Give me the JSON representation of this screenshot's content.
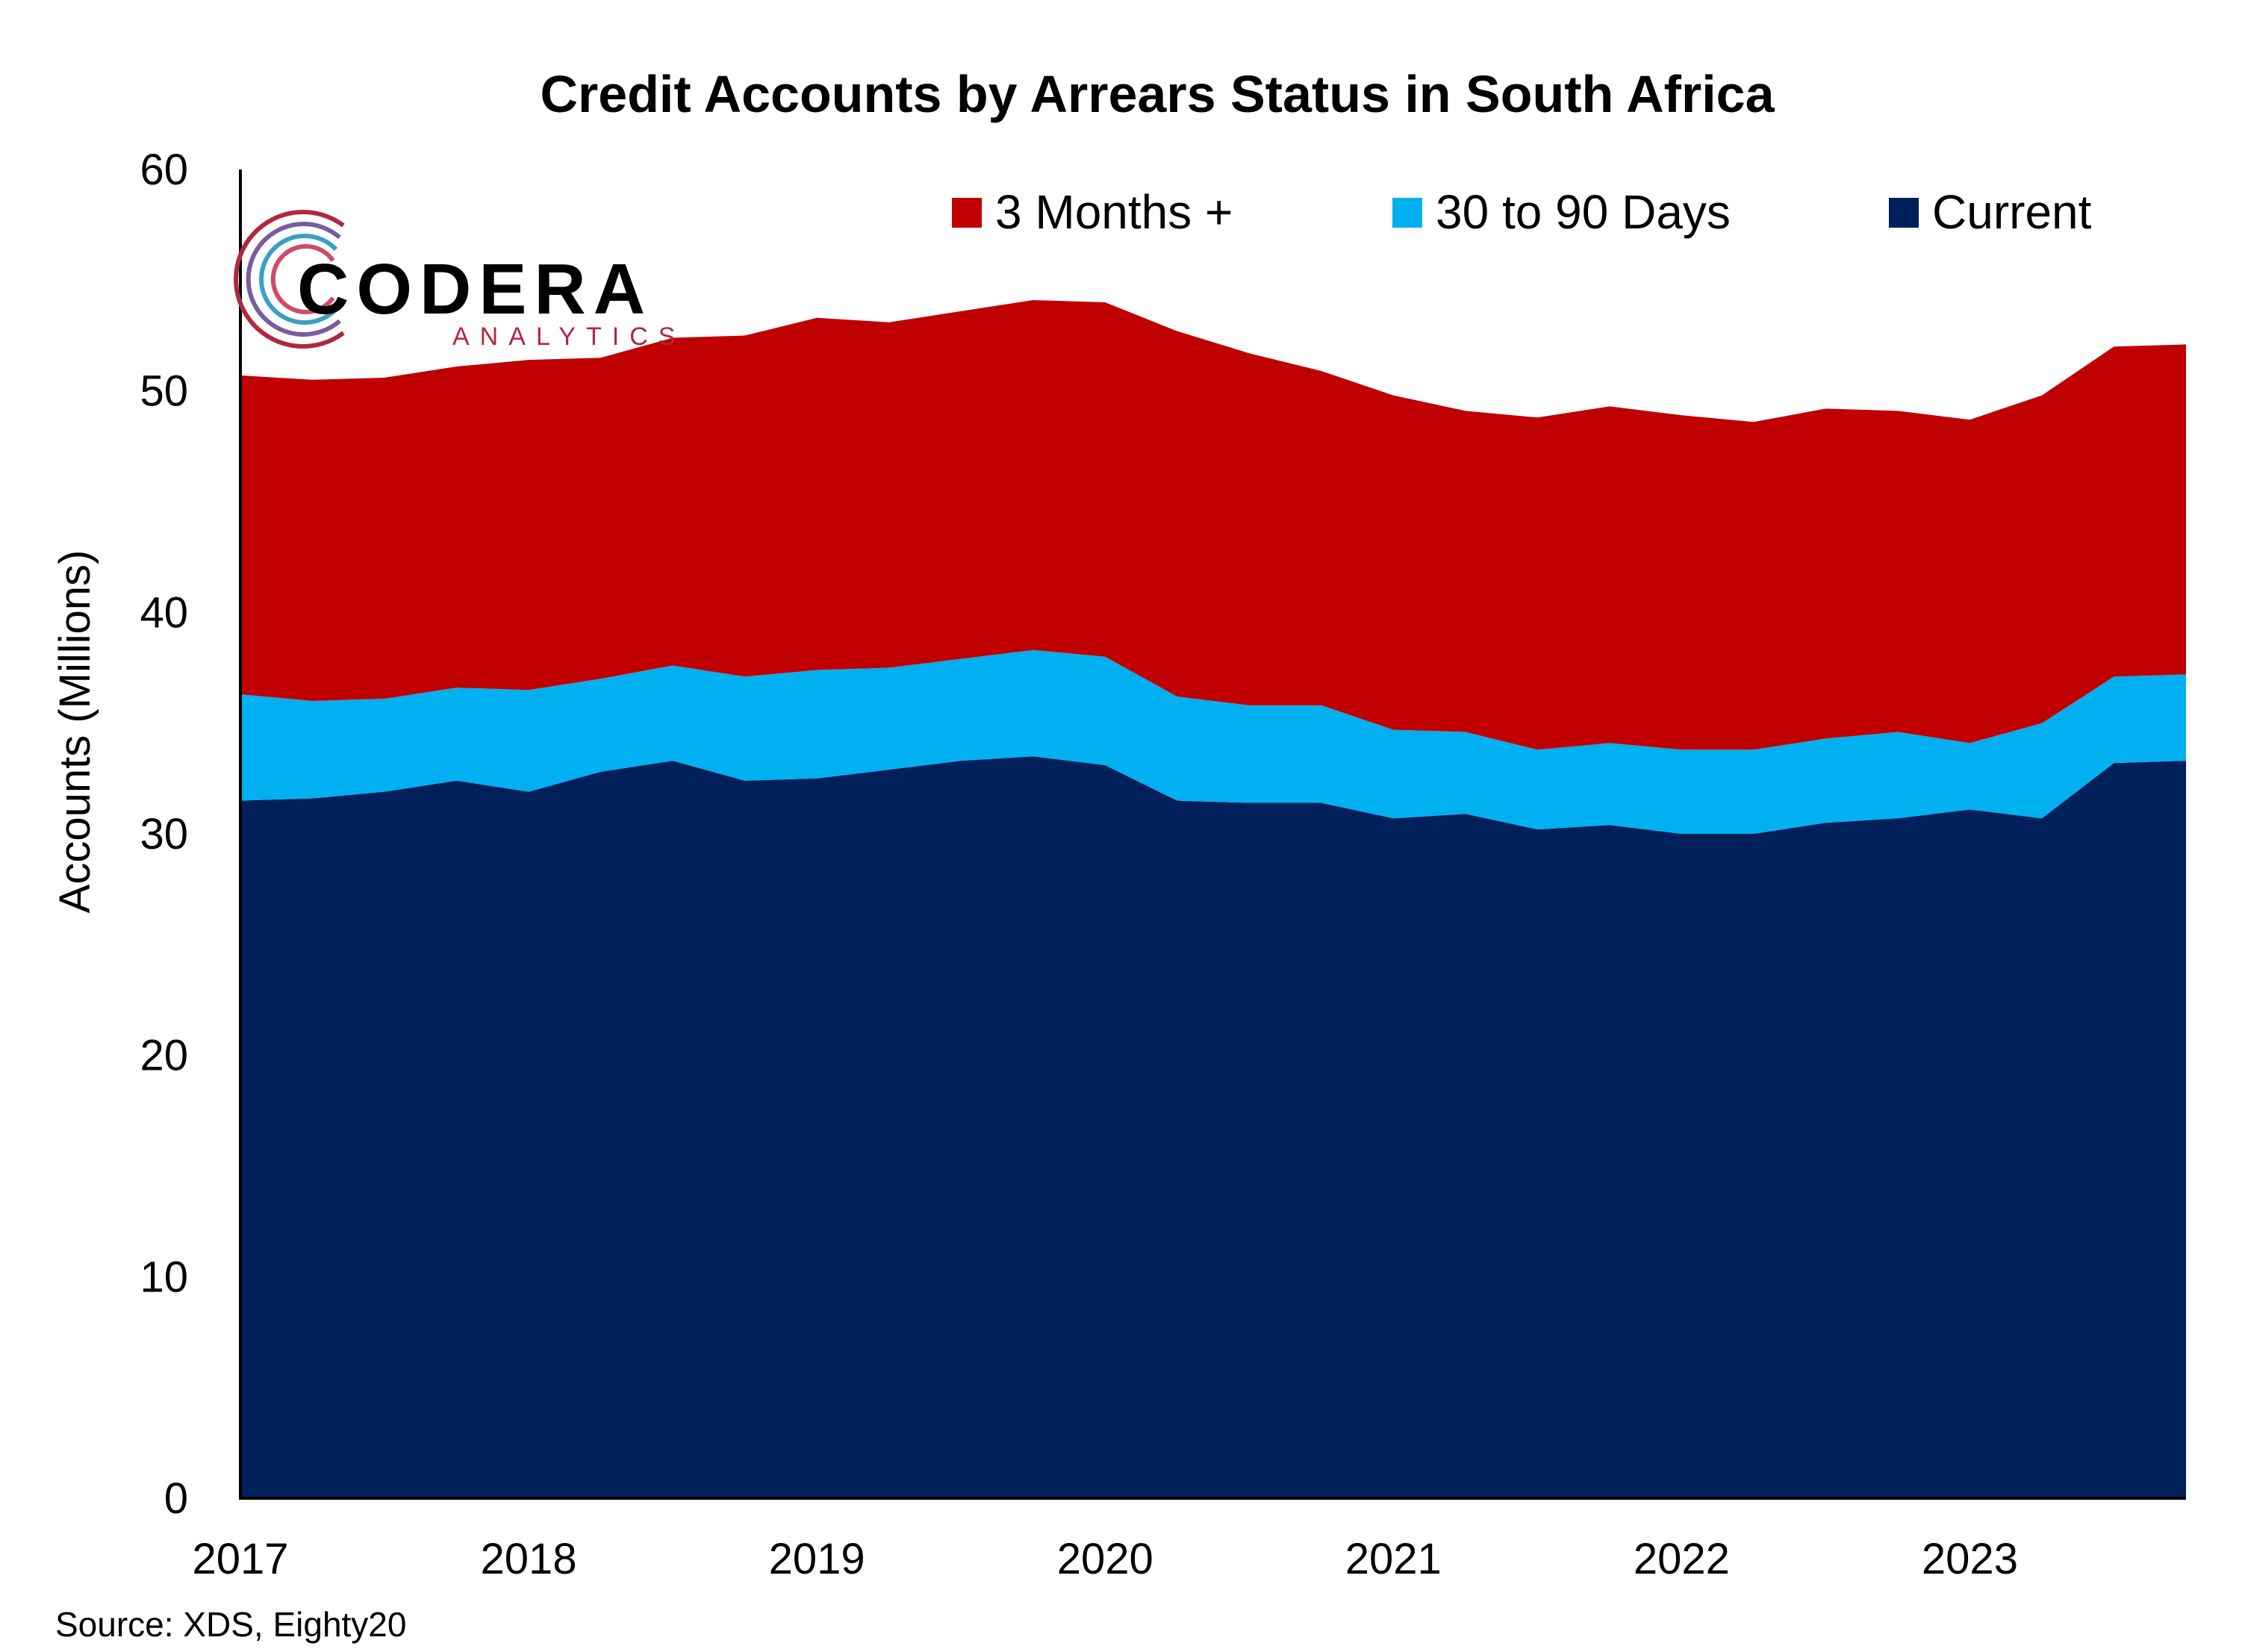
{
  "chart_data": {
    "type": "area",
    "stacked": true,
    "title": "Credit Accounts by Arrears Status in South Africa",
    "ylabel": "Accounts (Millions)",
    "xlabel": "",
    "ylim": [
      0,
      60
    ],
    "yticks": [
      "0",
      "10",
      "20",
      "30",
      "40",
      "50",
      "60"
    ],
    "xticks": [
      "2017",
      "2018",
      "2019",
      "2020",
      "2021",
      "2022",
      "2023"
    ],
    "xlim": [
      2017,
      2023.75
    ],
    "x": [
      2017,
      2017.25,
      2017.5,
      2017.75,
      2018,
      2018.25,
      2018.5,
      2018.75,
      2019,
      2019.25,
      2019.5,
      2019.75,
      2020,
      2020.25,
      2020.5,
      2020.75,
      2021,
      2021.25,
      2021.5,
      2021.75,
      2022,
      2022.25,
      2022.5,
      2022.75,
      2023,
      2023.25,
      2023.5,
      2023.75
    ],
    "series": [
      {
        "name": "Current",
        "color": "#00205b",
        "values": [
          31.5,
          31.6,
          31.9,
          32.4,
          31.9,
          32.8,
          33.3,
          32.4,
          32.5,
          32.9,
          33.3,
          33.5,
          33.1,
          31.5,
          31.4,
          31.4,
          30.7,
          30.9,
          30.2,
          30.4,
          30.0,
          30.0,
          30.5,
          30.7,
          31.1,
          30.7,
          33.2,
          33.3
        ]
      },
      {
        "name": "30 to 90 Days",
        "color": "#00b0f0",
        "values": [
          4.8,
          4.4,
          4.2,
          4.2,
          4.6,
          4.2,
          4.3,
          4.7,
          4.9,
          4.6,
          4.6,
          4.8,
          4.9,
          4.7,
          4.4,
          4.4,
          4.0,
          3.7,
          3.6,
          3.7,
          3.8,
          3.8,
          3.8,
          3.9,
          3.0,
          4.3,
          3.9,
          3.9
        ]
      },
      {
        "name": "3 Months +",
        "color": "#c00000",
        "values": [
          14.4,
          14.5,
          14.5,
          14.5,
          14.9,
          14.5,
          14.8,
          15.4,
          15.9,
          15.6,
          15.7,
          15.8,
          16.0,
          16.5,
          15.9,
          15.1,
          15.1,
          14.5,
          15.0,
          15.2,
          15.1,
          14.8,
          14.9,
          14.5,
          14.6,
          14.8,
          14.9,
          14.9
        ]
      }
    ],
    "legend": {
      "placement": "top-right",
      "entries": [
        {
          "label": "3 Months +",
          "color": "#c00000"
        },
        {
          "label": "30 to 90 Days",
          "color": "#00b0f0"
        },
        {
          "label": "Current",
          "color": "#00205b"
        }
      ]
    },
    "grid": false,
    "source": "Source: XDS, Eighty20"
  },
  "logo": {
    "main": "CODERA",
    "sub": "ANALYTICS"
  }
}
